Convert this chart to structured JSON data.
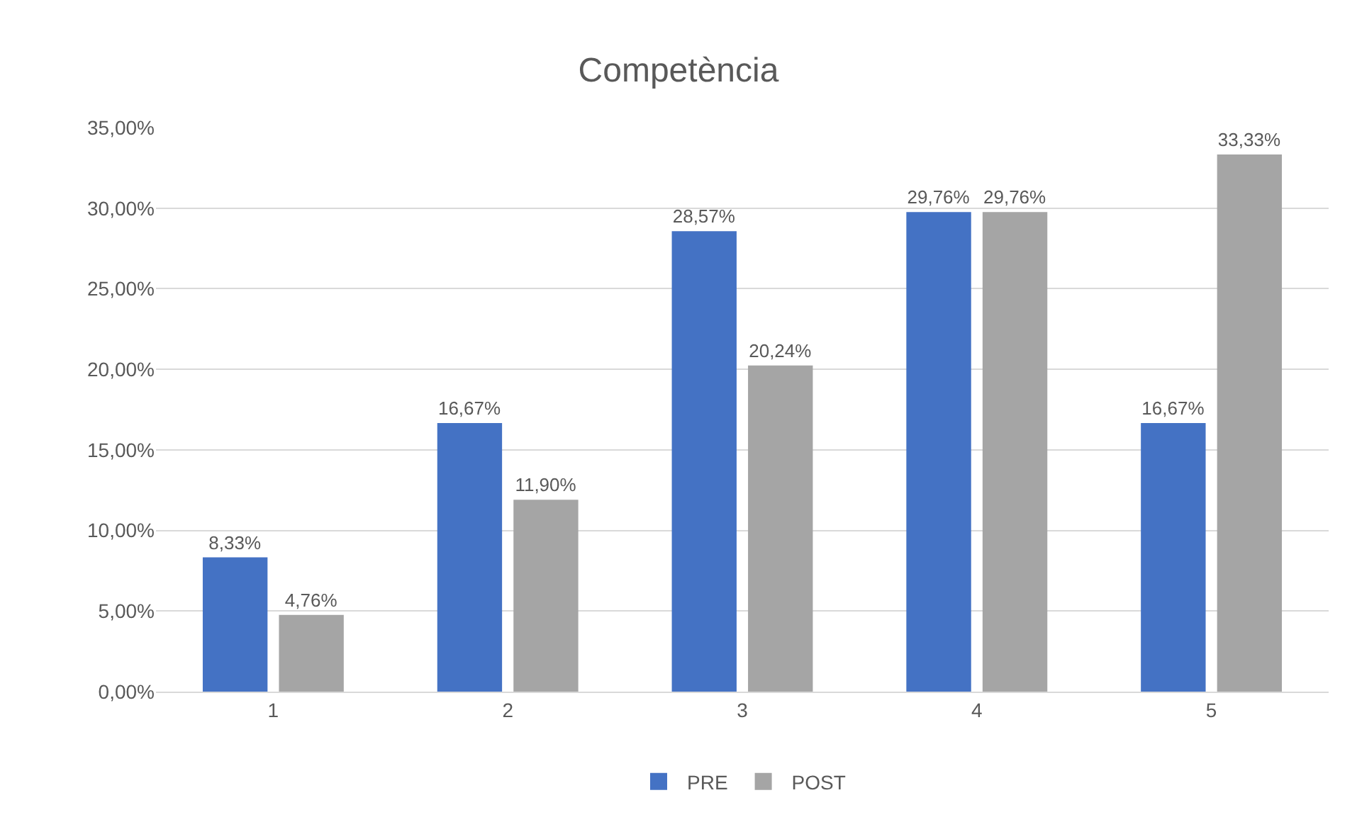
{
  "chart_data": {
    "type": "bar",
    "title": "Competència",
    "categories": [
      "1",
      "2",
      "3",
      "4",
      "5"
    ],
    "series": [
      {
        "name": "PRE",
        "color": "#4472c4",
        "values": [
          8.33,
          16.67,
          28.57,
          29.76,
          16.67
        ],
        "value_labels": [
          "8,33%",
          "16,67%",
          "28,57%",
          "29,76%",
          "16,67%"
        ]
      },
      {
        "name": "POST",
        "color": "#a5a5a5",
        "values": [
          4.76,
          11.9,
          20.24,
          29.76,
          33.33
        ],
        "value_labels": [
          "4,76%",
          "11,90%",
          "20,24%",
          "29,76%",
          "33,33%"
        ]
      }
    ],
    "ylim": [
      0,
      35
    ],
    "yticks": [
      {
        "value": 0,
        "label": "0,00%"
      },
      {
        "value": 5,
        "label": "5,00%"
      },
      {
        "value": 10,
        "label": "10,00%"
      },
      {
        "value": 15,
        "label": "15,00%"
      },
      {
        "value": 20,
        "label": "20,00%"
      },
      {
        "value": 25,
        "label": "25,00%"
      },
      {
        "value": 30,
        "label": "30,00%"
      },
      {
        "value": 35,
        "label": "35,00%"
      }
    ],
    "grid": "y",
    "legend": "bottom"
  }
}
